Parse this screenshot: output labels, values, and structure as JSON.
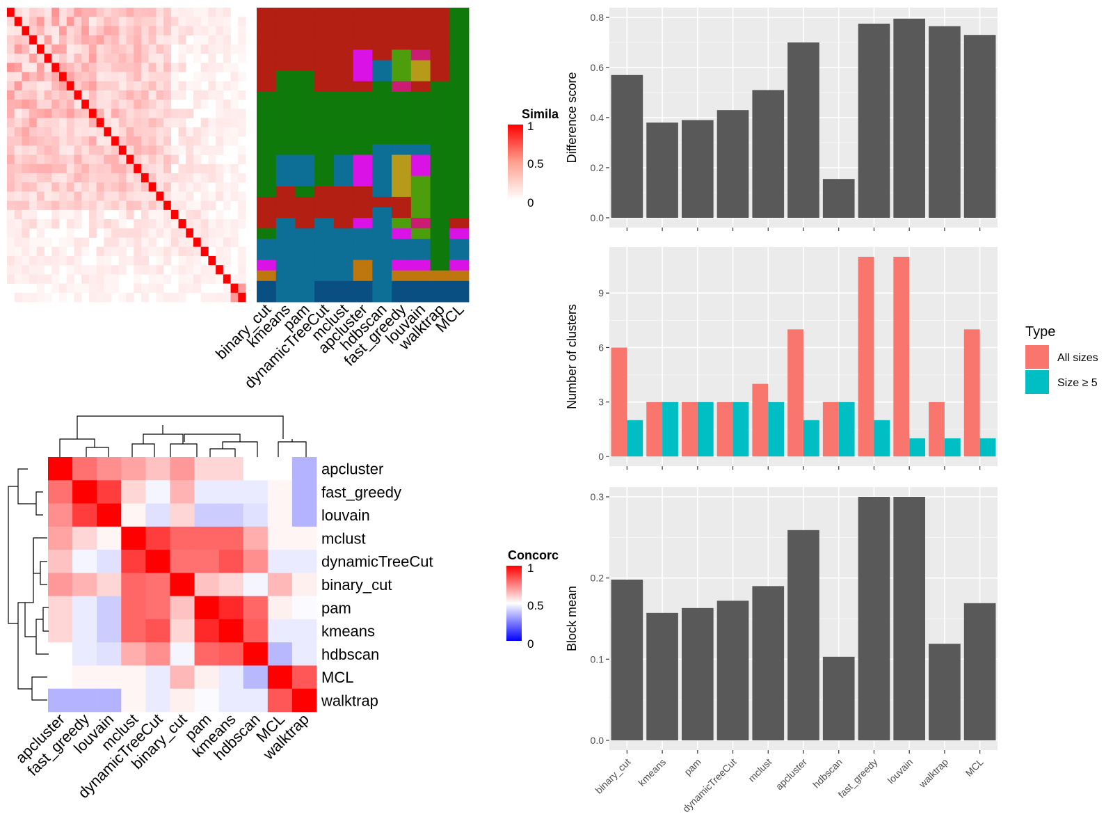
{
  "colors": {
    "bar": "#595959",
    "all_sizes": "#F8766D",
    "size_ge5": "#00BFC4",
    "panel_bg": "#EBEBEB",
    "similarity_high": "#FF0000",
    "concordance_low": "#0000FF",
    "partition_palette": [
      "#B31F12",
      "#0F7A0B",
      "#0D6E96",
      "#DA12E6",
      "#BD770E",
      "#4C9E0C",
      "#CC1B74",
      "#0A4F82",
      "#B89A1A"
    ]
  },
  "similarity_heatmap": {
    "legend_title": "Simila",
    "legend_ticks": [
      "1",
      "0.5",
      "0"
    ],
    "n": 32,
    "methods": [
      "binary_cut",
      "kmeans",
      "pam",
      "dynamicTreeCut",
      "mclust",
      "apcluster",
      "hdbscan",
      "fast_greedy",
      "louvain",
      "walktrap",
      "MCL"
    ],
    "partition_rows": [
      [
        0,
        0,
        0,
        0,
        0,
        0,
        0,
        0,
        0,
        0,
        1
      ],
      [
        0,
        0,
        0,
        0,
        0,
        0,
        0,
        0,
        0,
        0,
        1
      ],
      [
        0,
        0,
        0,
        0,
        0,
        0,
        0,
        0,
        0,
        0,
        1
      ],
      [
        0,
        0,
        0,
        0,
        0,
        0,
        0,
        0,
        0,
        0,
        1
      ],
      [
        0,
        0,
        0,
        0,
        0,
        3,
        0,
        5,
        6,
        0,
        1
      ],
      [
        0,
        0,
        0,
        0,
        0,
        3,
        2,
        5,
        8,
        0,
        1
      ],
      [
        0,
        1,
        1,
        0,
        0,
        3,
        2,
        5,
        8,
        0,
        1
      ],
      [
        0,
        1,
        1,
        0,
        0,
        0,
        1,
        6,
        0,
        1,
        1
      ],
      [
        1,
        1,
        1,
        1,
        1,
        1,
        1,
        1,
        1,
        1,
        1
      ],
      [
        1,
        1,
        1,
        1,
        1,
        1,
        1,
        1,
        1,
        1,
        1
      ],
      [
        1,
        1,
        1,
        1,
        1,
        1,
        1,
        1,
        1,
        1,
        1
      ],
      [
        1,
        1,
        1,
        1,
        1,
        1,
        1,
        1,
        1,
        1,
        1
      ],
      [
        1,
        1,
        1,
        1,
        1,
        1,
        1,
        1,
        1,
        1,
        1
      ],
      [
        1,
        1,
        1,
        1,
        1,
        1,
        2,
        2,
        2,
        1,
        1
      ],
      [
        1,
        2,
        2,
        1,
        2,
        3,
        2,
        8,
        3,
        1,
        1
      ],
      [
        1,
        2,
        2,
        1,
        2,
        3,
        2,
        8,
        3,
        1,
        1
      ],
      [
        1,
        2,
        2,
        1,
        2,
        3,
        2,
        8,
        5,
        1,
        1
      ],
      [
        1,
        0,
        1,
        0,
        0,
        0,
        2,
        8,
        5,
        1,
        1
      ],
      [
        0,
        0,
        0,
        0,
        0,
        0,
        0,
        0,
        5,
        1,
        1
      ],
      [
        0,
        0,
        0,
        0,
        0,
        0,
        2,
        0,
        5,
        1,
        1
      ],
      [
        0,
        2,
        0,
        2,
        0,
        3,
        2,
        5,
        6,
        1,
        0
      ],
      [
        1,
        2,
        2,
        2,
        2,
        2,
        2,
        3,
        5,
        1,
        3
      ],
      [
        2,
        2,
        2,
        2,
        2,
        2,
        2,
        2,
        2,
        1,
        2
      ],
      [
        2,
        2,
        2,
        2,
        2,
        2,
        2,
        2,
        2,
        1,
        2
      ],
      [
        3,
        2,
        2,
        2,
        2,
        4,
        2,
        3,
        3,
        1,
        3
      ],
      [
        4,
        2,
        2,
        2,
        2,
        4,
        2,
        4,
        4,
        4,
        4
      ],
      [
        7,
        2,
        2,
        7,
        7,
        7,
        2,
        7,
        7,
        7,
        7
      ],
      [
        7,
        2,
        2,
        7,
        7,
        7,
        2,
        7,
        7,
        7,
        7
      ]
    ]
  },
  "concordance_heatmap": {
    "legend_title": "Concorc",
    "legend_ticks": [
      "1",
      "0.5",
      "0"
    ],
    "labels": [
      "apcluster",
      "fast_greedy",
      "louvain",
      "mclust",
      "dynamicTreeCut",
      "binary_cut",
      "pam",
      "kmeans",
      "hdbscan",
      "MCL",
      "walktrap"
    ],
    "matrix": [
      [
        1.0,
        0.78,
        0.72,
        0.68,
        0.62,
        0.7,
        0.58,
        0.58,
        0.5,
        0.5,
        0.35
      ],
      [
        0.78,
        1.0,
        0.88,
        0.58,
        0.48,
        0.65,
        0.46,
        0.46,
        0.46,
        0.52,
        0.35
      ],
      [
        0.72,
        0.88,
        1.0,
        0.52,
        0.44,
        0.58,
        0.4,
        0.4,
        0.44,
        0.52,
        0.35
      ],
      [
        0.68,
        0.58,
        0.52,
        1.0,
        0.88,
        0.8,
        0.8,
        0.8,
        0.66,
        0.52,
        0.52
      ],
      [
        0.62,
        0.48,
        0.44,
        0.88,
        1.0,
        0.78,
        0.78,
        0.84,
        0.72,
        0.46,
        0.46
      ],
      [
        0.7,
        0.65,
        0.58,
        0.8,
        0.78,
        1.0,
        0.62,
        0.58,
        0.48,
        0.64,
        0.53
      ],
      [
        0.58,
        0.46,
        0.4,
        0.8,
        0.78,
        0.62,
        1.0,
        0.92,
        0.8,
        0.53,
        0.49
      ],
      [
        0.58,
        0.46,
        0.4,
        0.8,
        0.84,
        0.58,
        0.92,
        1.0,
        0.82,
        0.46,
        0.46
      ],
      [
        0.5,
        0.46,
        0.44,
        0.66,
        0.72,
        0.48,
        0.8,
        0.82,
        1.0,
        0.36,
        0.46
      ],
      [
        0.5,
        0.52,
        0.52,
        0.52,
        0.46,
        0.64,
        0.53,
        0.46,
        0.36,
        1.0,
        0.83
      ],
      [
        0.35,
        0.35,
        0.35,
        0.52,
        0.46,
        0.53,
        0.49,
        0.46,
        0.46,
        0.83,
        1.0
      ]
    ]
  },
  "chart_data": [
    {
      "type": "bar",
      "categories": [
        "binary_cut",
        "kmeans",
        "pam",
        "dynamicTreeCut",
        "mclust",
        "apcluster",
        "hdbscan",
        "fast_greedy",
        "louvain",
        "walktrap",
        "MCL"
      ],
      "values": [
        0.57,
        0.38,
        0.39,
        0.43,
        0.51,
        0.7,
        0.155,
        0.775,
        0.795,
        0.765,
        0.73
      ],
      "ylabel": "Difference score",
      "ylim": [
        0,
        0.8
      ],
      "yticks": [
        "0.0",
        "0.2",
        "0.4",
        "0.6",
        "0.8"
      ],
      "ytick_values": [
        0,
        0.2,
        0.4,
        0.6,
        0.8
      ],
      "grid": true
    },
    {
      "type": "bar",
      "categories": [
        "binary_cut",
        "kmeans",
        "pam",
        "dynamicTreeCut",
        "mclust",
        "apcluster",
        "hdbscan",
        "fast_greedy",
        "louvain",
        "walktrap",
        "MCL"
      ],
      "series": [
        {
          "name": "All sizes",
          "values": [
            6,
            3,
            3,
            3,
            4,
            7,
            3,
            11,
            11,
            3,
            7
          ]
        },
        {
          "name": "Size ≥ 5",
          "values": [
            2,
            3,
            3,
            3,
            3,
            2,
            3,
            2,
            1,
            1,
            1
          ]
        }
      ],
      "ylabel": "Number of clusters",
      "ylim": [
        0,
        11
      ],
      "yticks": [
        "0",
        "3",
        "6",
        "9"
      ],
      "ytick_values": [
        0,
        3,
        6,
        9
      ],
      "legend_title": "Type",
      "legend_position": "right",
      "grid": true
    },
    {
      "type": "bar",
      "categories": [
        "binary_cut",
        "kmeans",
        "pam",
        "dynamicTreeCut",
        "mclust",
        "apcluster",
        "hdbscan",
        "fast_greedy",
        "louvain",
        "walktrap",
        "MCL"
      ],
      "values": [
        0.198,
        0.157,
        0.163,
        0.172,
        0.19,
        0.259,
        0.103,
        0.3,
        0.3,
        0.119,
        0.169
      ],
      "ylabel": "Block mean",
      "ylim": [
        0,
        0.3
      ],
      "yticks": [
        "0.0",
        "0.1",
        "0.2",
        "0.3"
      ],
      "ytick_values": [
        0,
        0.1,
        0.2,
        0.3
      ],
      "grid": true
    }
  ]
}
